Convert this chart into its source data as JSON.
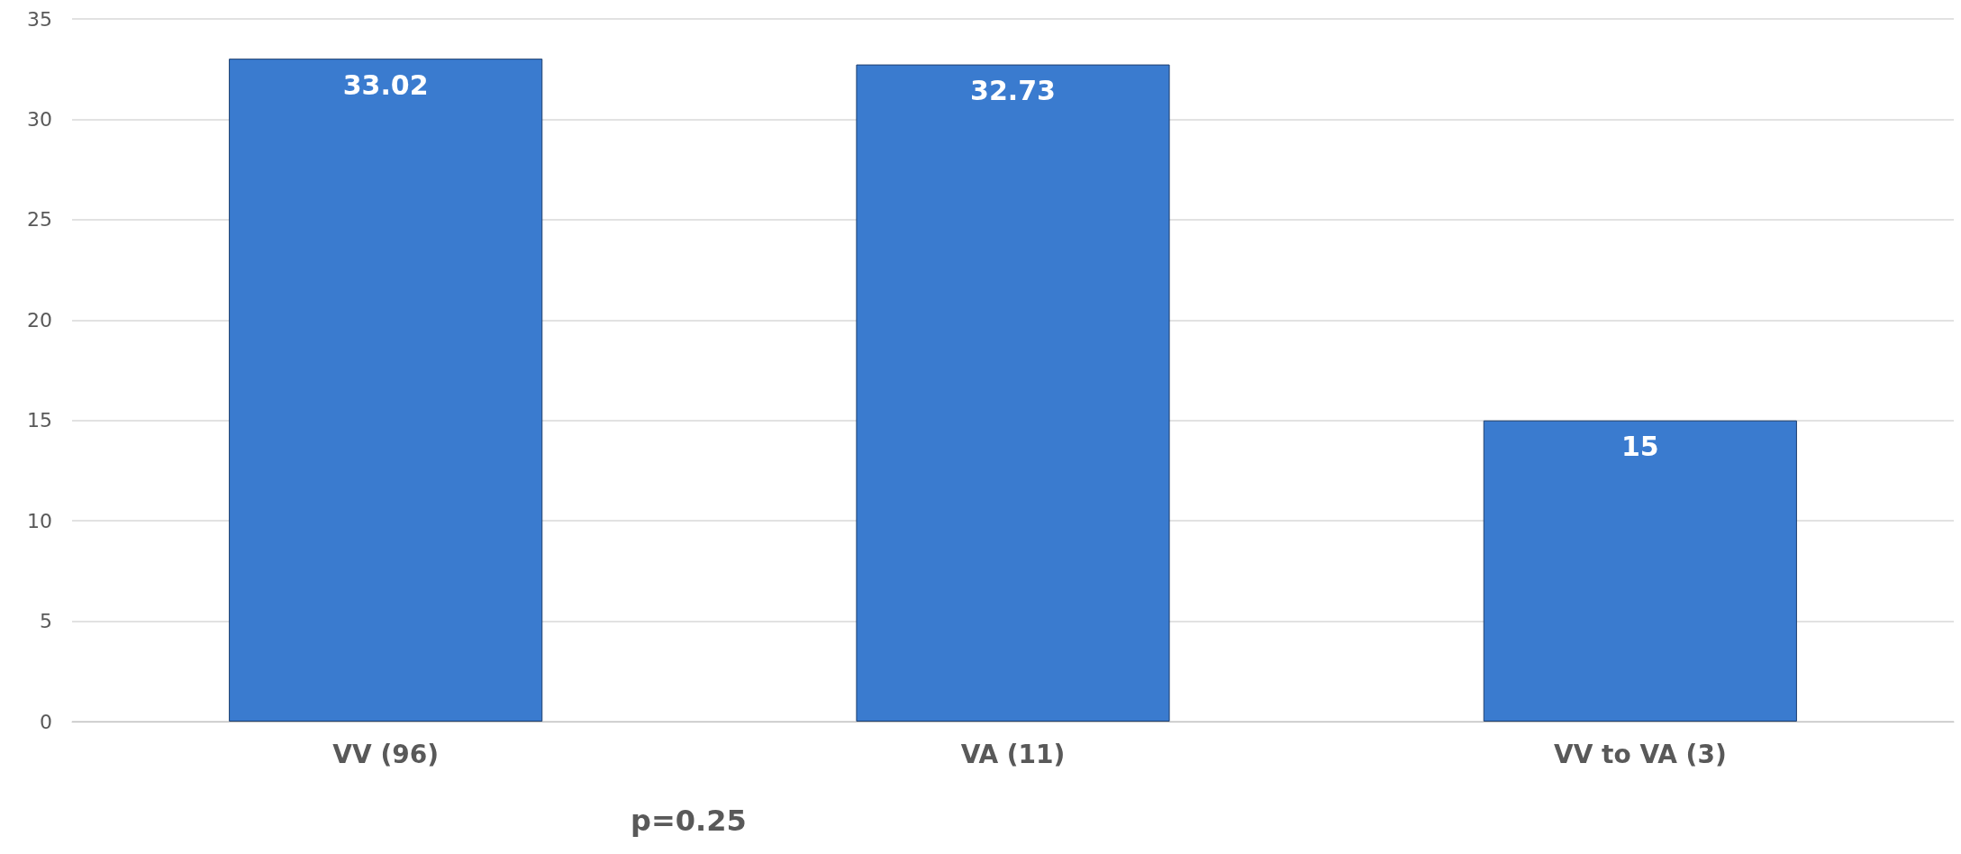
{
  "chart_data": {
    "type": "bar",
    "categories": [
      "VV (96)",
      "VA (11)",
      "VV to VA (3)"
    ],
    "values": [
      33.02,
      32.73,
      15
    ],
    "color": "#3a7bcf",
    "ylim": [
      0,
      35
    ],
    "yticks": [
      0,
      5,
      10,
      15,
      20,
      25,
      30,
      35
    ],
    "grid": "y",
    "data_labels": true,
    "annotations": [
      "p=0.25"
    ]
  }
}
